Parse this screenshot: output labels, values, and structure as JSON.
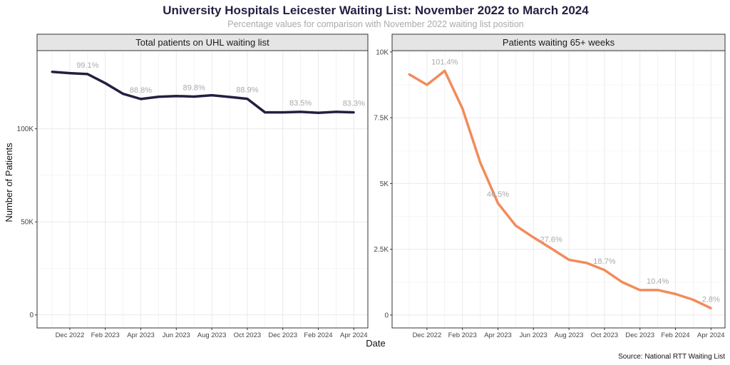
{
  "title": "University Hospitals Leicester Waiting List: November 2022 to March 2024",
  "subtitle": "Percentage values for comparison with November 2022 waiting list position",
  "xlabel": "Date",
  "ylabel": "Number of Patients",
  "caption": "Source: National RTT Waiting List",
  "chart_data": [
    {
      "type": "line",
      "title": "Total patients on UHL waiting list",
      "color": "#231f42",
      "ylim": [
        -7000,
        142000
      ],
      "yticks": [
        0,
        50000,
        100000
      ],
      "ytick_labels": [
        "0",
        "50K",
        "100K"
      ],
      "xtick_labels": [
        "Dec 2022",
        "Feb 2023",
        "Apr 2023",
        "Jun 2023",
        "Aug 2023",
        "Oct 2023",
        "Dec 2023",
        "Feb 2024",
        "Apr 2024"
      ],
      "x": [
        "2022-11",
        "2022-12",
        "2023-01",
        "2023-02",
        "2023-03",
        "2023-04",
        "2023-05",
        "2023-06",
        "2023-07",
        "2023-08",
        "2023-09",
        "2023-10",
        "2023-11",
        "2023-12",
        "2024-01",
        "2024-02",
        "2024-03",
        "2024-04"
      ],
      "values": [
        130600,
        129900,
        129400,
        124500,
        118800,
        116000,
        117200,
        117600,
        117300,
        118000,
        117100,
        116100,
        108800,
        108800,
        109100,
        108600,
        109100,
        108800
      ],
      "annotations": [
        {
          "x": "2023-01",
          "label": "99.1%"
        },
        {
          "x": "2023-04",
          "label": "88.8%"
        },
        {
          "x": "2023-07",
          "label": "89.8%"
        },
        {
          "x": "2023-10",
          "label": "88.9%"
        },
        {
          "x": "2024-01",
          "label": "83.5%"
        },
        {
          "x": "2024-04",
          "label": "83.3%"
        }
      ],
      "grid": true
    },
    {
      "type": "line",
      "title": "Patients waiting 65+ weeks",
      "color": "#f28b5b",
      "ylim": [
        -490,
        10050
      ],
      "yticks": [
        0,
        2500,
        5000,
        7500,
        10000
      ],
      "ytick_labels": [
        "0",
        "2.5K",
        "5K",
        "7.5K",
        "10K"
      ],
      "xtick_labels": [
        "Dec 2022",
        "Feb 2023",
        "Apr 2023",
        "Jun 2023",
        "Aug 2023",
        "Oct 2023",
        "Dec 2023",
        "Feb 2024",
        "Apr 2024"
      ],
      "x": [
        "2022-11",
        "2022-12",
        "2023-01",
        "2023-02",
        "2023-03",
        "2023-04",
        "2023-05",
        "2023-06",
        "2023-07",
        "2023-08",
        "2023-09",
        "2023-10",
        "2023-11",
        "2023-12",
        "2024-01",
        "2024-02",
        "2024-03",
        "2024-04"
      ],
      "values": [
        9150,
        8750,
        9280,
        7850,
        5800,
        4250,
        3400,
        2950,
        2530,
        2100,
        1980,
        1710,
        1250,
        950,
        950,
        800,
        580,
        260
      ],
      "annotations": [
        {
          "x": "2023-01",
          "label": "101.4%"
        },
        {
          "x": "2023-04",
          "label": "46.5%"
        },
        {
          "x": "2023-07",
          "label": "27.6%"
        },
        {
          "x": "2023-10",
          "label": "18.7%"
        },
        {
          "x": "2024-01",
          "label": "10.4%"
        },
        {
          "x": "2024-04",
          "label": "2.8%"
        }
      ],
      "grid": true
    }
  ]
}
